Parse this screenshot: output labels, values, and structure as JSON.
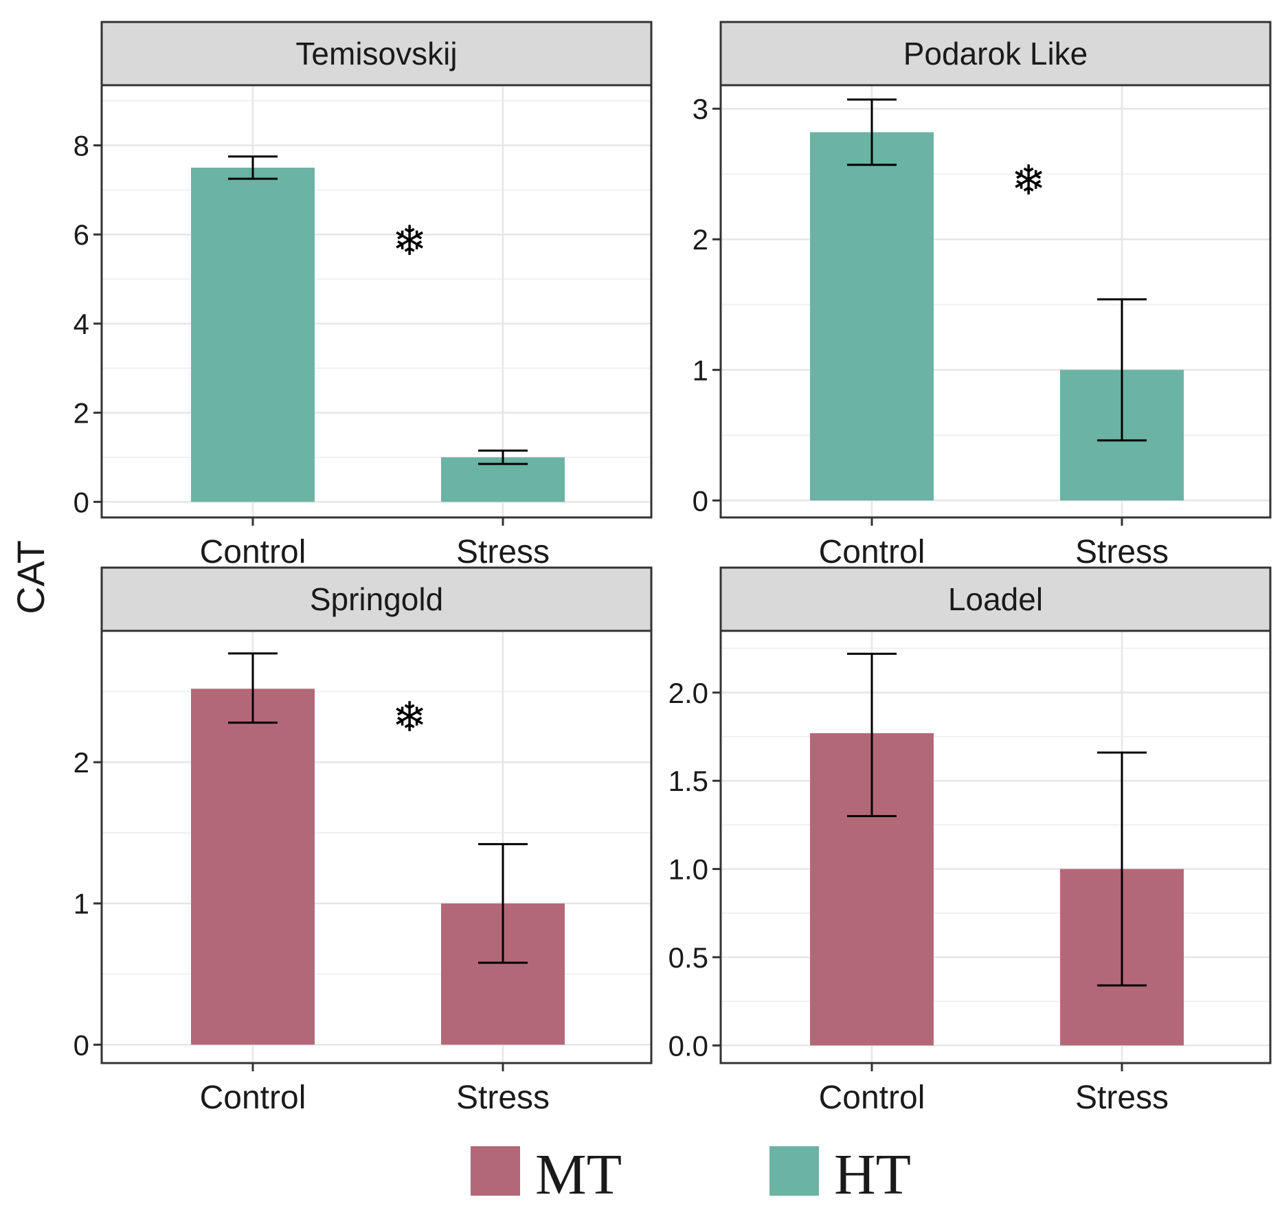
{
  "chart_data": {
    "type": "bar",
    "ylabel": "CAT",
    "categories": [
      "Control",
      "Stress"
    ],
    "legend": {
      "placement": "bottom",
      "entries": [
        {
          "name": "MT",
          "color": "#b36878"
        },
        {
          "name": "HT",
          "color": "#6bb3a3"
        }
      ]
    },
    "panels": [
      {
        "title": "Temisovskij",
        "group": "HT",
        "values": [
          7.5,
          1.0
        ],
        "error_low": [
          7.25,
          0.85
        ],
        "error_high": [
          7.75,
          1.15
        ],
        "ylim": [
          -0.35,
          9.35
        ],
        "yticks": [
          0,
          2,
          4,
          6,
          8
        ],
        "yticklabels": [
          "0",
          "2",
          "4",
          "6",
          "8"
        ],
        "significance": "❄",
        "sig_y": 5.8
      },
      {
        "title": "Podarok Like",
        "group": "HT",
        "values": [
          2.82,
          1.0
        ],
        "error_low": [
          2.57,
          0.46
        ],
        "error_high": [
          3.07,
          1.54
        ],
        "ylim": [
          -0.13,
          3.18
        ],
        "yticks": [
          0,
          1,
          2,
          3
        ],
        "yticklabels": [
          "0",
          "1",
          "2",
          "3"
        ],
        "significance": "❄",
        "sig_y": 2.43
      },
      {
        "title": "Springold",
        "group": "MT",
        "values": [
          2.52,
          1.0
        ],
        "error_low": [
          2.28,
          0.58
        ],
        "error_high": [
          2.77,
          1.42
        ],
        "ylim": [
          -0.13,
          2.93
        ],
        "yticks": [
          0,
          1,
          2
        ],
        "yticklabels": [
          "0",
          "1",
          "2"
        ],
        "significance": "❄",
        "sig_y": 2.3
      },
      {
        "title": "Loadel",
        "group": "MT",
        "values": [
          1.77,
          1.0
        ],
        "error_low": [
          1.3,
          0.34
        ],
        "error_high": [
          2.22,
          1.66
        ],
        "ylim": [
          -0.1,
          2.35
        ],
        "yticks": [
          0,
          0.5,
          1.0,
          1.5,
          2.0
        ],
        "yticklabels": [
          "0.0",
          "0.5",
          "1.0",
          "1.5",
          "2.0"
        ],
        "significance": "",
        "sig_y": 0
      }
    ]
  }
}
